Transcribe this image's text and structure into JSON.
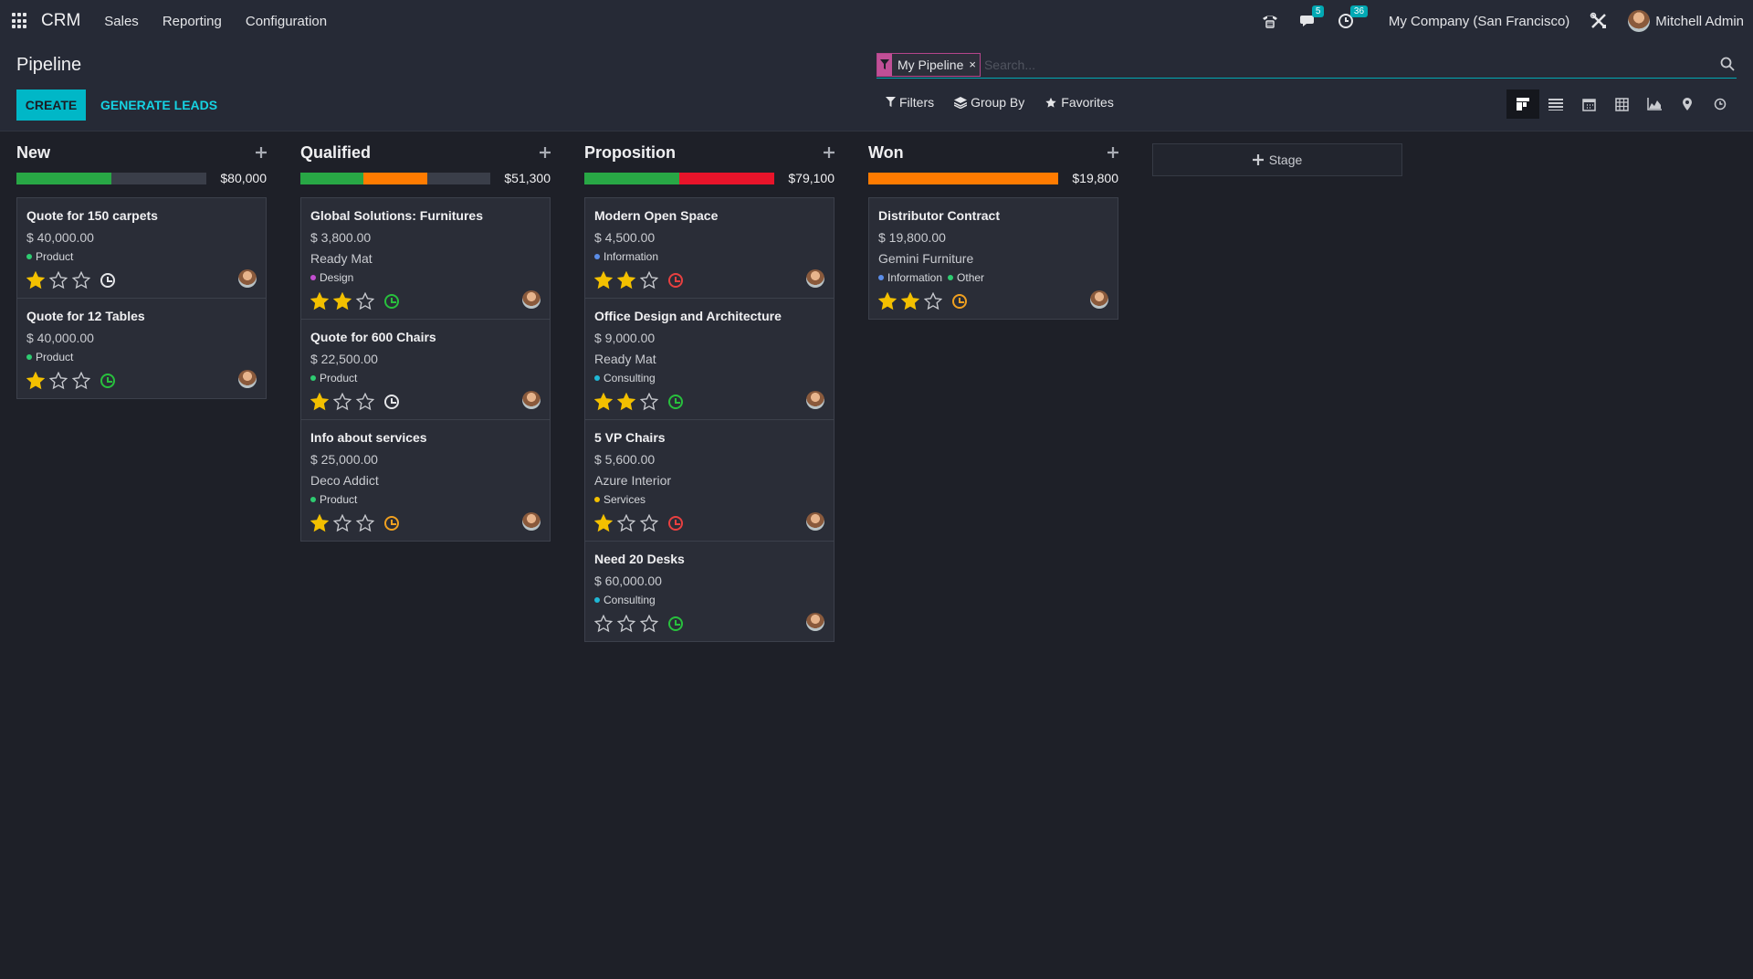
{
  "navbar": {
    "brand": "CRM",
    "menu": [
      "Sales",
      "Reporting",
      "Configuration"
    ],
    "messages_count": "5",
    "activities_count": "36",
    "company": "My Company (San Francisco)",
    "user": "Mitchell Admin"
  },
  "control": {
    "title": "Pipeline",
    "create_label": "CREATE",
    "generate_label": "GENERATE LEADS",
    "facet_label": "My Pipeline",
    "facet_close": "×",
    "search_placeholder": "Search...",
    "filters_label": "Filters",
    "groupby_label": "Group By",
    "favorites_label": "Favorites"
  },
  "colors": {
    "accent": "#00b7c7",
    "won": "#28a745",
    "planned": "#ff7b00",
    "overdue": "#e8142a",
    "star": "#f3c000"
  },
  "columns": [
    {
      "title": "New",
      "total": "$80,000",
      "progress": [
        {
          "color": "#28a745",
          "pct": 50
        }
      ],
      "cards": [
        {
          "title": "Quote for 150 carpets",
          "amount": "$ 40,000.00",
          "company": "",
          "tags": [
            {
              "label": "Product",
              "color": "#2ecc71"
            }
          ],
          "stars": 1,
          "activity": "#e4e5e8"
        },
        {
          "title": "Quote for 12 Tables",
          "amount": "$ 40,000.00",
          "company": "",
          "tags": [
            {
              "label": "Product",
              "color": "#2ecc71"
            }
          ],
          "stars": 1,
          "activity": "#28c03d"
        }
      ]
    },
    {
      "title": "Qualified",
      "total": "$51,300",
      "progress": [
        {
          "color": "#28a745",
          "pct": 33
        },
        {
          "color": "#ff7b00",
          "pct": 34
        }
      ],
      "cards": [
        {
          "title": "Global Solutions: Furnitures",
          "amount": "$ 3,800.00",
          "company": "Ready Mat",
          "tags": [
            {
              "label": "Design",
              "color": "#c34fd1"
            }
          ],
          "stars": 2,
          "activity": "#28c03d"
        },
        {
          "title": "Quote for 600 Chairs",
          "amount": "$ 22,500.00",
          "company": "",
          "tags": [
            {
              "label": "Product",
              "color": "#2ecc71"
            }
          ],
          "stars": 1,
          "activity": "#e4e5e8"
        },
        {
          "title": "Info about services",
          "amount": "$ 25,000.00",
          "company": "Deco Addict",
          "tags": [
            {
              "label": "Product",
              "color": "#2ecc71"
            }
          ],
          "stars": 1,
          "activity": "#f0a020"
        }
      ]
    },
    {
      "title": "Proposition",
      "total": "$79,100",
      "progress": [
        {
          "color": "#28a745",
          "pct": 50
        },
        {
          "color": "#e8142a",
          "pct": 50
        }
      ],
      "cards": [
        {
          "title": "Modern Open Space",
          "amount": "$ 4,500.00",
          "company": "",
          "tags": [
            {
              "label": "Information",
              "color": "#5b8de8"
            }
          ],
          "stars": 2,
          "activity": "#e84040"
        },
        {
          "title": "Office Design and Architecture",
          "amount": "$ 9,000.00",
          "company": "Ready Mat",
          "tags": [
            {
              "label": "Consulting",
              "color": "#1fb8d6"
            }
          ],
          "stars": 2,
          "activity": "#28c03d"
        },
        {
          "title": "5 VP Chairs",
          "amount": "$ 5,600.00",
          "company": "Azure Interior",
          "tags": [
            {
              "label": "Services",
              "color": "#f3c000"
            }
          ],
          "stars": 1,
          "activity": "#e84040"
        },
        {
          "title": "Need 20 Desks",
          "amount": "$ 60,000.00",
          "company": "",
          "tags": [
            {
              "label": "Consulting",
              "color": "#1fb8d6"
            }
          ],
          "stars": 0,
          "activity": "#28c03d"
        }
      ]
    },
    {
      "title": "Won",
      "total": "$19,800",
      "progress": [
        {
          "color": "#ff7b00",
          "pct": 100
        }
      ],
      "cards": [
        {
          "title": "Distributor Contract",
          "amount": "$ 19,800.00",
          "company": "Gemini Furniture",
          "tags": [
            {
              "label": "Information",
              "color": "#5b8de8"
            },
            {
              "label": "Other",
              "color": "#2ecc71"
            }
          ],
          "stars": 2,
          "activity": "#f0a020"
        }
      ]
    }
  ],
  "add_stage_label": "Stage"
}
